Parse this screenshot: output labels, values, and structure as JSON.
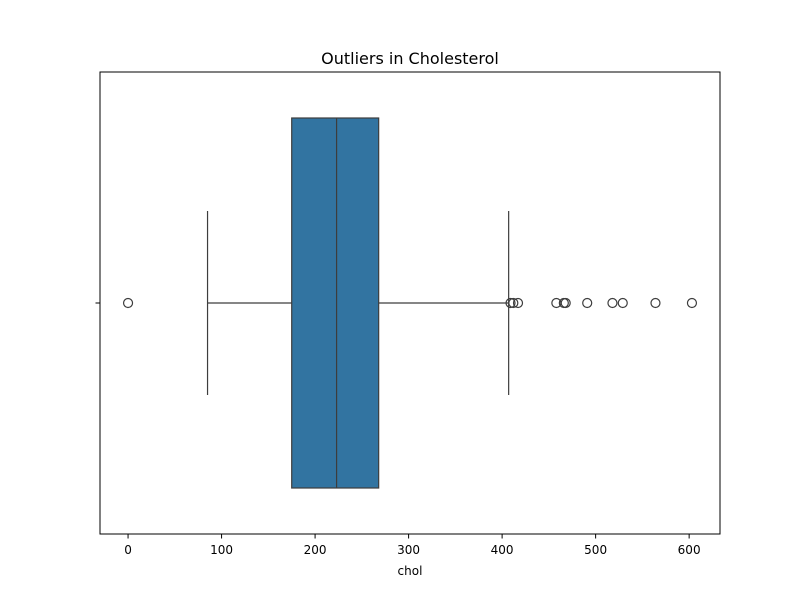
{
  "chart_data": {
    "type": "box",
    "title": "Outliers in Cholesterol",
    "xlabel": "chol",
    "ylabel": "",
    "orientation": "horizontal",
    "xlim": [
      -30,
      633
    ],
    "xticks": [
      0,
      100,
      200,
      300,
      400,
      500,
      600
    ],
    "grid": false,
    "box": {
      "whisker_low": 85,
      "q1": 175,
      "median": 223,
      "q3": 268,
      "whisker_high": 407
    },
    "outliers": [
      0,
      409,
      412,
      417,
      458,
      466,
      468,
      491,
      518,
      529,
      564,
      603
    ],
    "colors": {
      "box_fill": "#3274a1",
      "line": "#3d3d3d"
    }
  }
}
